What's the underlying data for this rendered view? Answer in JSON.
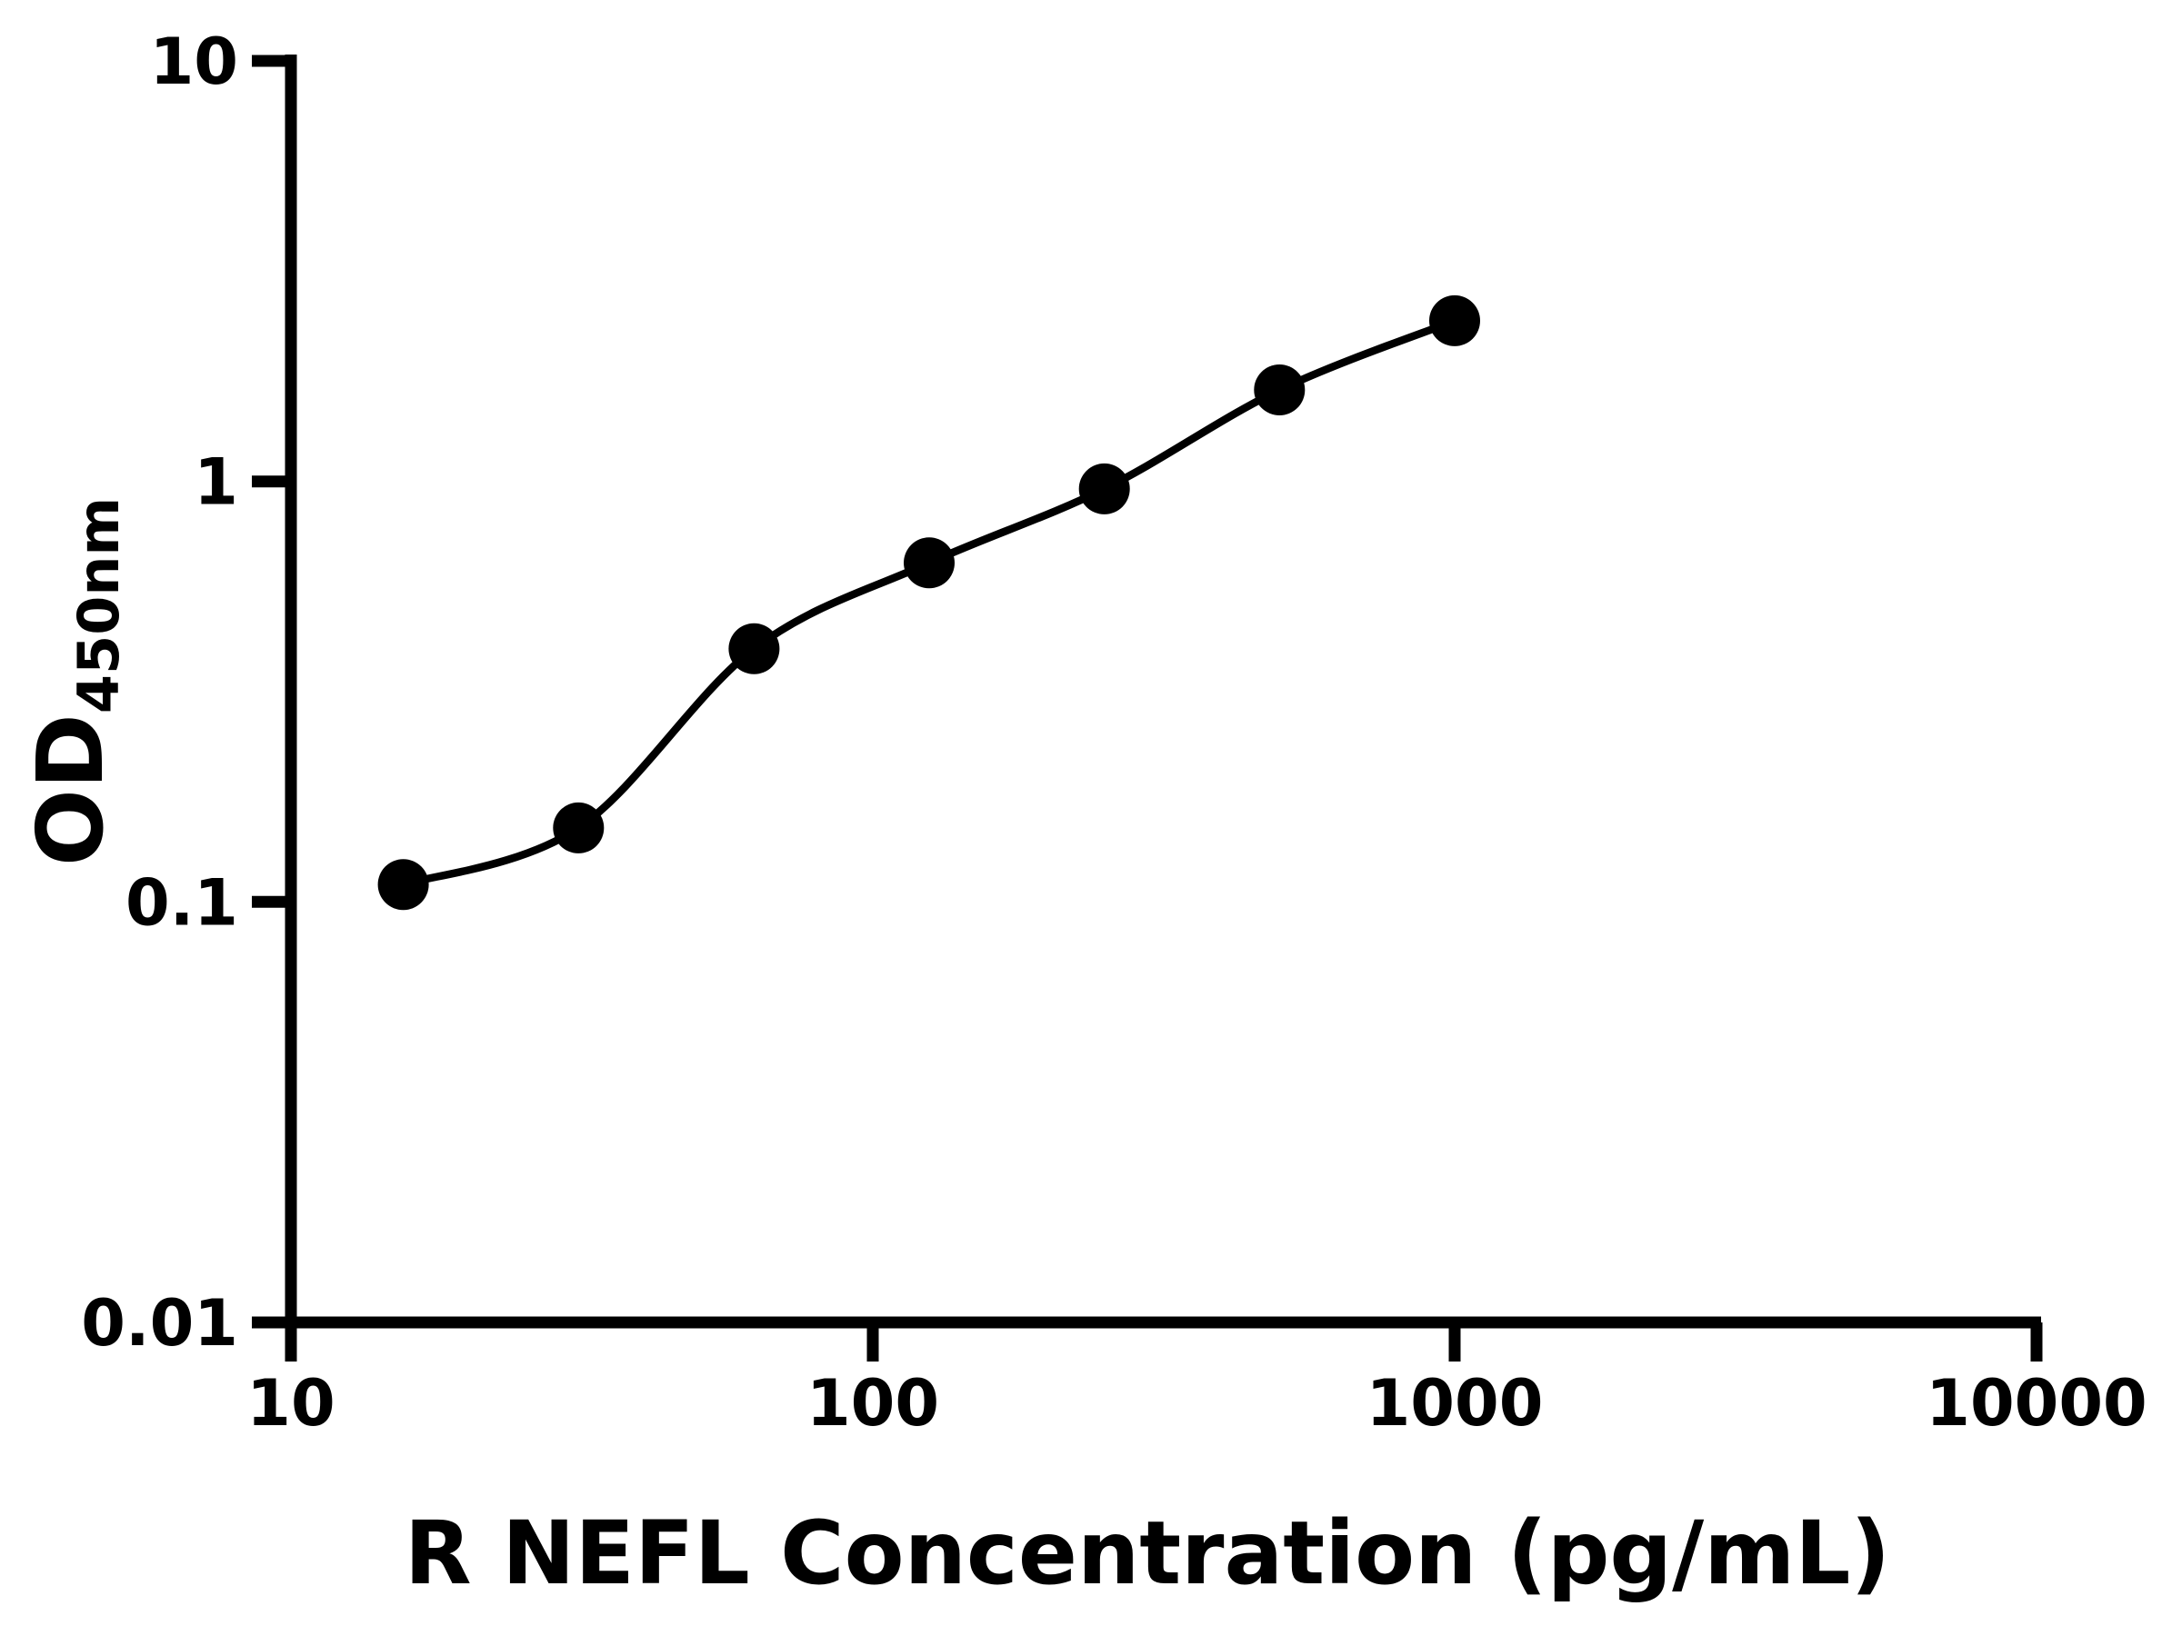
{
  "figure": {
    "background": "#ffffff"
  },
  "chart_data": {
    "type": "scatter",
    "scale": {
      "x": "log",
      "y": "log"
    },
    "title": "",
    "xlabel": "R NEFL Concentration (pg/mL)",
    "ylabel": {
      "main": "OD",
      "sub": "450nm"
    },
    "x": [
      15.6,
      31.2,
      62.5,
      125,
      250,
      500,
      1000
    ],
    "y": [
      0.11,
      0.15,
      0.4,
      0.64,
      0.96,
      1.65,
      2.41
    ],
    "x_ticks": {
      "values": [
        10,
        100,
        1000,
        10000
      ],
      "labels": [
        "10",
        "100",
        "1000",
        "10000"
      ]
    },
    "y_ticks": {
      "values": [
        10,
        1,
        0.1,
        0.01
      ],
      "labels": [
        "10",
        "1",
        "0.1",
        "0.01"
      ]
    },
    "xlim": [
      10,
      10000
    ],
    "ylim": [
      0.01,
      10
    ],
    "grid": false,
    "legend": false,
    "curve": "smooth fit line through all points",
    "marker": "filled-circle",
    "marker_color": "#000000",
    "line_color": "#000000",
    "axis_color": "#000000"
  }
}
